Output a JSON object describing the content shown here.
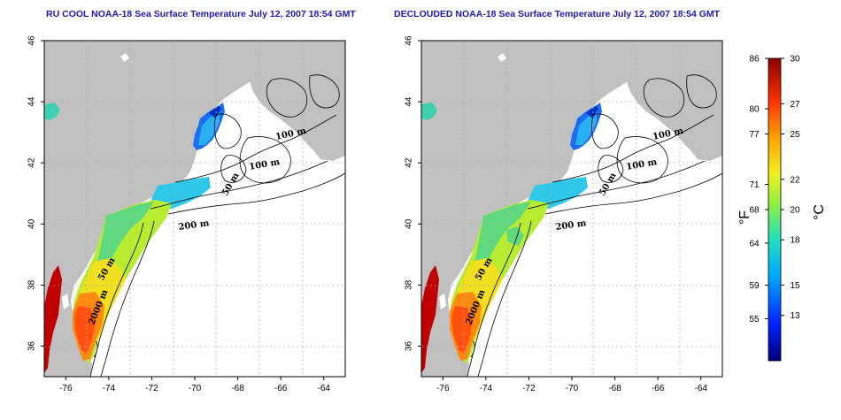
{
  "panels": [
    {
      "title": "RU COOL NOAA-18 Sea Surface Temperature July 12, 2007 18:54 GMT",
      "contour_labels": [
        "100 m",
        "100 m",
        "50 m",
        "200 m",
        "50 m",
        "2000 m"
      ]
    },
    {
      "title": "DECLOUDED NOAA-18 Sea Surface Temperature July 12, 2007 18:54 GMT",
      "contour_labels": [
        "100 m",
        "100 m",
        "50 m",
        "200 m",
        "50 m",
        "2000 m"
      ]
    }
  ],
  "map_axes": {
    "x_ticks": [
      "-76",
      "-74",
      "-72",
      "-70",
      "-68",
      "-66",
      "-64"
    ],
    "y_ticks": [
      "36",
      "38",
      "40",
      "42",
      "44",
      "46"
    ],
    "lon_range": [
      -77,
      -63
    ],
    "lat_range": [
      35,
      46
    ]
  },
  "colorbar": {
    "fahrenheit_ticks": [
      "86",
      "80",
      "77",
      "71",
      "68",
      "64",
      "59",
      "55"
    ],
    "celsius_ticks": [
      "30",
      "27",
      "25",
      "22",
      "20",
      "18",
      "15",
      "13"
    ],
    "fahrenheit_unit": "°F",
    "celsius_unit": "°C",
    "range_c": [
      10,
      30
    ]
  },
  "colors": {
    "land": "#c0c0c0",
    "ocean": "#ffffff",
    "title": "#1a1ab0",
    "grid": "#b0b0b0"
  }
}
